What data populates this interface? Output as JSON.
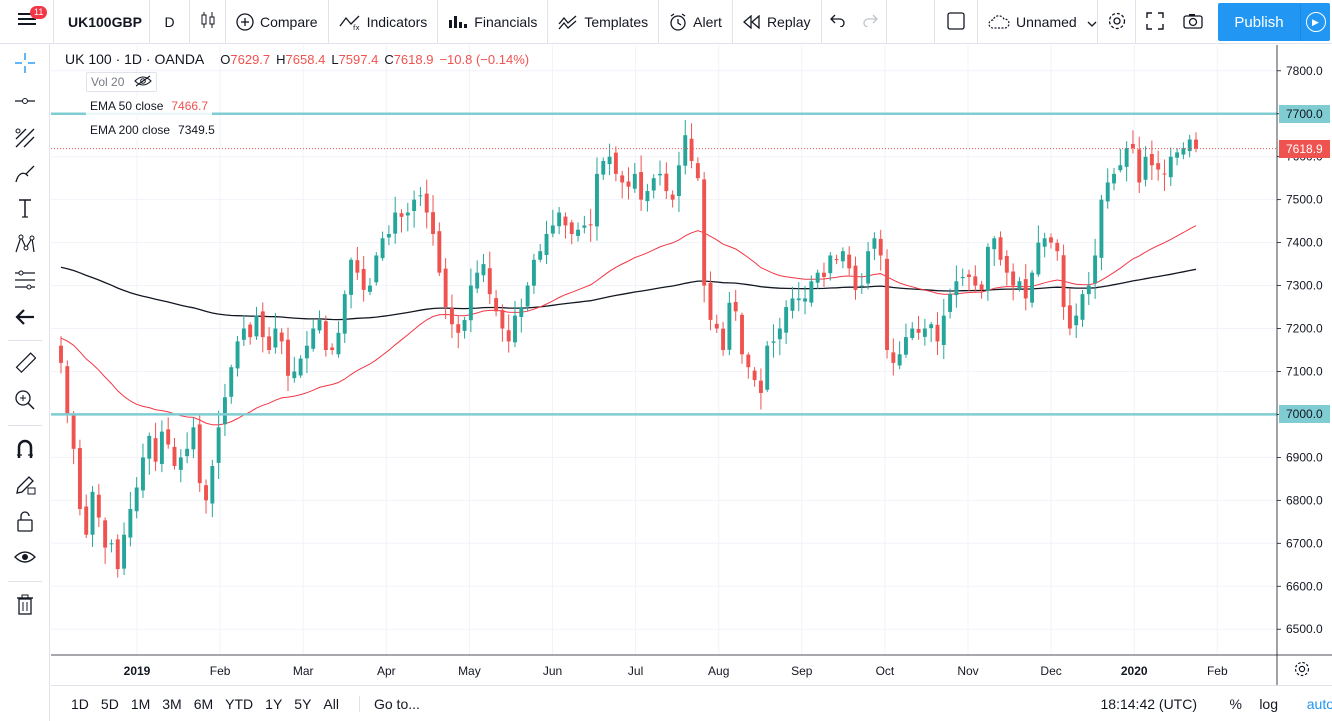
{
  "toolbar": {
    "menu_badge": "11",
    "symbol": "UK100GBP",
    "interval": "D",
    "compare": "Compare",
    "indicators": "Indicators",
    "financials": "Financials",
    "templates": "Templates",
    "alert": "Alert",
    "replay": "Replay",
    "layout_name": "Unnamed",
    "publish": "Publish"
  },
  "legend": {
    "title": "UK 100 · 1D · OANDA",
    "open_label": "O",
    "open": "7629.7",
    "high_label": "H",
    "high": "7658.4",
    "low_label": "L",
    "low": "7597.4",
    "close_label": "C",
    "close": "7618.9",
    "change": "−10.8 (−0.14%)",
    "volume": "Vol 20",
    "ema50_label": "EMA 50 close",
    "ema50_value": "7466.7",
    "ema200_label": "EMA 200 close",
    "ema200_value": "7349.5"
  },
  "price_tags": {
    "upper_level": "7700.0",
    "last_price": "7618.9",
    "lower_level": "7000.0"
  },
  "bottombar": {
    "ranges": [
      "1D",
      "5D",
      "1M",
      "3M",
      "6M",
      "YTD",
      "1Y",
      "5Y",
      "All"
    ],
    "goto": "Go to...",
    "clock": "18:14:42 (UTC)",
    "percent": "%",
    "log": "log",
    "auto": "auto"
  },
  "colors": {
    "up": "#26a69a",
    "down": "#ef5350",
    "ema50": "#f23645",
    "ema200": "#131722",
    "hline": "#7fcdd2",
    "accent": "#2196f3"
  },
  "icons": [
    "menu-icon",
    "candles-icon",
    "compare-plus-icon",
    "indicators-icon",
    "financials-icon",
    "templates-icon",
    "alarm-clock-icon",
    "replay-icon",
    "undo-icon",
    "redo-icon",
    "fullscreen-square-icon",
    "cloud-icon",
    "gear-icon",
    "fullscreen-icon",
    "camera-icon",
    "play-icon",
    "crosshair-icon",
    "trendline-icon",
    "pitchfork-icon",
    "brush-icon",
    "text-icon",
    "pattern-icon",
    "prediction-icon",
    "back-arrow-icon",
    "ruler-icon",
    "zoom-icon",
    "magnet-icon",
    "lock-drawing-icon",
    "lock-icon",
    "eye-icon",
    "trash-icon"
  ],
  "chart_data": {
    "type": "candlestick",
    "title": "UK 100 · 1D · OANDA",
    "ylim": [
      6440,
      7860
    ],
    "yticks": [
      6500,
      6600,
      6700,
      6800,
      6900,
      7000,
      7100,
      7200,
      7300,
      7400,
      7500,
      7600,
      7700,
      7800
    ],
    "xlabels": [
      "2019",
      "Feb",
      "Mar",
      "Apr",
      "May",
      "Jun",
      "Jul",
      "Aug",
      "Sep",
      "Oct",
      "Nov",
      "Dec",
      "2020",
      "Feb"
    ],
    "horizontal_levels": [
      7700,
      7000
    ],
    "last_price": 7618.9,
    "grid": true,
    "closes_approx": [
      7120,
      7000,
      6920,
      6780,
      6720,
      6820,
      6760,
      6690,
      6700,
      6640,
      6720,
      6780,
      6830,
      6900,
      6950,
      6890,
      6960,
      6930,
      6880,
      6900,
      6920,
      6970,
      6840,
      6800,
      6880,
      6970,
      7040,
      7110,
      7170,
      7200,
      7180,
      7230,
      7180,
      7150,
      7200,
      7170,
      7090,
      7100,
      7130,
      7160,
      7200,
      7220,
      7150,
      7150,
      7190,
      7280,
      7360,
      7330,
      7290,
      7300,
      7370,
      7410,
      7420,
      7470,
      7460,
      7470,
      7500,
      7510,
      7470,
      7420,
      7330,
      7250,
      7210,
      7190,
      7220,
      7300,
      7330,
      7350,
      7280,
      7240,
      7200,
      7170,
      7230,
      7250,
      7300,
      7360,
      7380,
      7420,
      7440,
      7470,
      7440,
      7420,
      7430,
      7440,
      7440,
      7560,
      7590,
      7600,
      7560,
      7540,
      7530,
      7560,
      7500,
      7520,
      7550,
      7560,
      7520,
      7500,
      7580,
      7650,
      7590,
      7550,
      7300,
      7220,
      7200,
      7150,
      7260,
      7240,
      7140,
      7110,
      7080,
      7050,
      7160,
      7170,
      7200,
      7250,
      7270,
      7270,
      7270,
      7310,
      7330,
      7320,
      7370,
      7360,
      7380,
      7340,
      7290,
      7300,
      7380,
      7410,
      7370,
      7150,
      7120,
      7140,
      7180,
      7200,
      7190,
      7200,
      7210,
      7170,
      7230,
      7280,
      7310,
      7320,
      7320,
      7300,
      7290,
      7390,
      7410,
      7360,
      7330,
      7300,
      7310,
      7270,
      7330,
      7400,
      7410,
      7400,
      7380,
      7250,
      7200,
      7230,
      7280,
      7300,
      7370,
      7500,
      7540,
      7560,
      7580,
      7620,
      7620,
      7540,
      7600,
      7580,
      7570,
      7560,
      7600,
      7610,
      7620,
      7640,
      7618.9
    ]
  }
}
